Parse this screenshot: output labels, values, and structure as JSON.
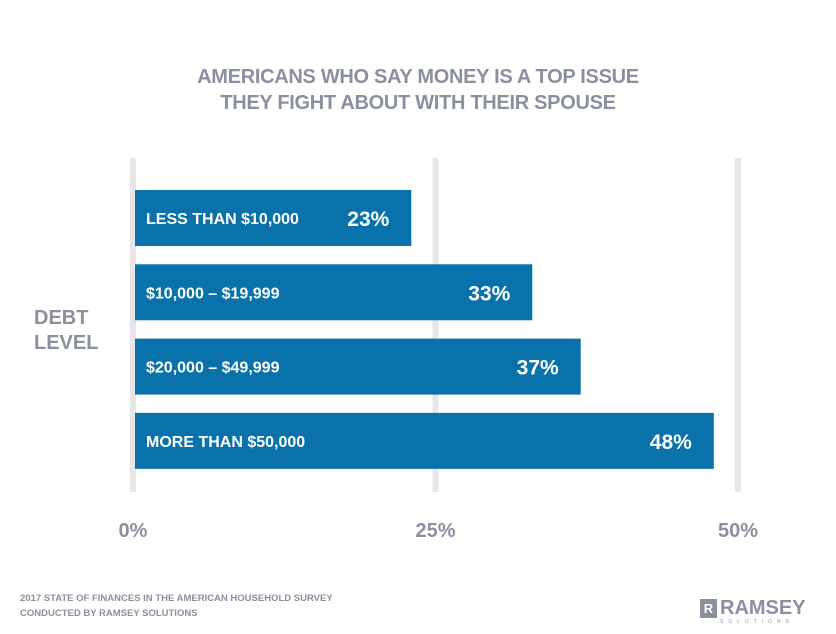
{
  "chart_data": {
    "type": "bar",
    "orientation": "horizontal",
    "title_lines": [
      "AMERICANS WHO SAY MONEY IS A TOP ISSUE",
      "THEY FIGHT ABOUT WITH THEIR SPOUSE"
    ],
    "ylabel_lines": [
      "DEBT",
      "LEVEL"
    ],
    "categories": [
      "LESS THAN $10,000",
      "$10,000 – $19,999",
      "$20,000 – $49,999",
      "MORE THAN $50,000"
    ],
    "values": [
      23,
      33,
      37,
      48
    ],
    "data_labels": [
      "23%",
      "33%",
      "37%",
      "48%"
    ],
    "xlim": [
      0,
      50
    ],
    "xticks": [
      0,
      25,
      50
    ],
    "xtick_labels": [
      "0%",
      "25%",
      "50%"
    ],
    "grid": true,
    "colors": {
      "bar": "#0a72aa",
      "grid": "#e6e6e8",
      "text": "#8b909e"
    }
  },
  "footer": {
    "line1": "2017 STATE OF FINANCES IN THE AMERICAN HOUSEHOLD SURVEY",
    "line2": "CONDUCTED BY RAMSEY SOLUTIONS"
  },
  "logo": {
    "mark": "R",
    "word": "RAMSEY",
    "sub": "SOLUTIONS"
  }
}
